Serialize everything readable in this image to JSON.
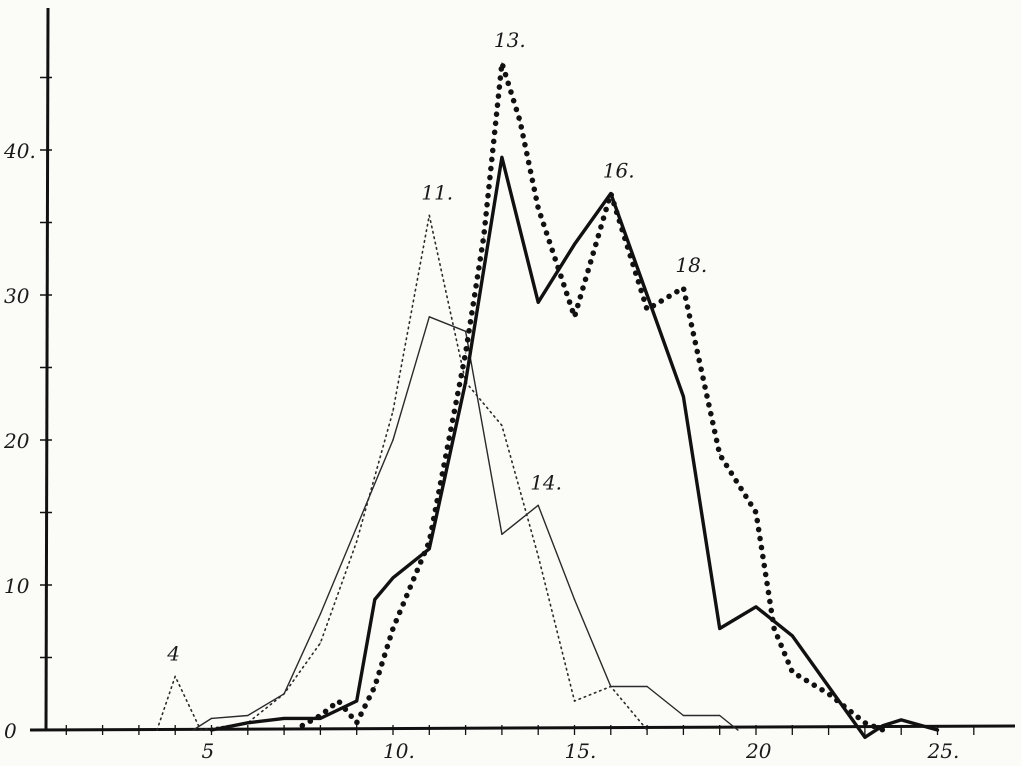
{
  "chart_data": {
    "type": "line",
    "title": "",
    "xlabel": "",
    "ylabel": "",
    "xlim": [
      0,
      27
    ],
    "ylim": [
      0,
      48
    ],
    "x_ticks": [
      {
        "value": 5,
        "label": "5"
      },
      {
        "value": 10,
        "label": "10."
      },
      {
        "value": 15,
        "label": "15."
      },
      {
        "value": 20,
        "label": "20"
      },
      {
        "value": 25,
        "label": "25."
      }
    ],
    "y_ticks": [
      {
        "value": 0,
        "label": "0"
      },
      {
        "value": 10,
        "label": "10"
      },
      {
        "value": 20,
        "label": "20"
      },
      {
        "value": 30,
        "label": "30"
      },
      {
        "value": 40,
        "label": "40."
      }
    ],
    "grid": false,
    "legend": "none",
    "series": [
      {
        "style": "thin-solid",
        "color": "#2a2a2a",
        "points": [
          [
            4.5,
            0
          ],
          [
            5,
            0.8
          ],
          [
            6,
            1
          ],
          [
            7,
            2.5
          ],
          [
            8,
            8
          ],
          [
            9,
            14
          ],
          [
            10,
            20
          ],
          [
            11,
            28.5
          ],
          [
            12,
            27.5
          ],
          [
            13,
            13.5
          ],
          [
            14,
            15.5
          ],
          [
            15,
            9
          ],
          [
            16,
            3
          ],
          [
            17,
            3
          ],
          [
            18,
            1
          ],
          [
            19,
            1
          ],
          [
            19.5,
            0
          ]
        ]
      },
      {
        "style": "fine-dotted",
        "color": "#2a2a2a",
        "points": [
          [
            3.5,
            0
          ],
          [
            4,
            3.7
          ],
          [
            4.7,
            0
          ],
          [
            6,
            0.5
          ],
          [
            7,
            2.5
          ],
          [
            8,
            6
          ],
          [
            9,
            13
          ],
          [
            10,
            22
          ],
          [
            11,
            35.5
          ],
          [
            12,
            24
          ],
          [
            13,
            21
          ],
          [
            14,
            12
          ],
          [
            15,
            2
          ],
          [
            16,
            3
          ],
          [
            17,
            0
          ]
        ]
      },
      {
        "style": "thick-solid",
        "color": "#111111",
        "points": [
          [
            5,
            0
          ],
          [
            6,
            0.5
          ],
          [
            7,
            0.8
          ],
          [
            8,
            0.8
          ],
          [
            9,
            2
          ],
          [
            9.5,
            9
          ],
          [
            10,
            10.5
          ],
          [
            11,
            12.5
          ],
          [
            12,
            24
          ],
          [
            13,
            39.5
          ],
          [
            14,
            29.5
          ],
          [
            15,
            33.5
          ],
          [
            16,
            37
          ],
          [
            17,
            30
          ],
          [
            18,
            23
          ],
          [
            19,
            7
          ],
          [
            20,
            8.5
          ],
          [
            21,
            6.5
          ],
          [
            22,
            3
          ],
          [
            23,
            -0.5
          ],
          [
            23.5,
            0.3
          ],
          [
            24,
            0.7
          ],
          [
            25,
            0
          ]
        ]
      },
      {
        "style": "heavy-dotted",
        "color": "#111111",
        "points": [
          [
            7.5,
            0.3
          ],
          [
            8,
            1
          ],
          [
            8.5,
            2
          ],
          [
            9,
            0.5
          ],
          [
            9.5,
            3
          ],
          [
            10,
            7
          ],
          [
            11,
            13
          ],
          [
            12,
            26
          ],
          [
            12.5,
            34
          ],
          [
            13,
            46
          ],
          [
            13.5,
            42
          ],
          [
            14,
            36
          ],
          [
            15,
            28.5
          ],
          [
            16,
            37
          ],
          [
            17,
            29
          ],
          [
            18,
            30.5
          ],
          [
            19,
            19
          ],
          [
            20,
            15
          ],
          [
            20.5,
            7
          ],
          [
            21,
            4
          ],
          [
            22,
            2.5
          ],
          [
            23,
            0.5
          ],
          [
            23.5,
            0
          ]
        ]
      }
    ],
    "annotations": [
      {
        "text": "4",
        "x": 4,
        "y": 3.7
      },
      {
        "text": "11.",
        "x": 11,
        "y": 35.5
      },
      {
        "text": "13.",
        "x": 13,
        "y": 46
      },
      {
        "text": "14.",
        "x": 14,
        "y": 15.5
      },
      {
        "text": "16.",
        "x": 16,
        "y": 37
      },
      {
        "text": "18.",
        "x": 18,
        "y": 30.5
      }
    ]
  }
}
